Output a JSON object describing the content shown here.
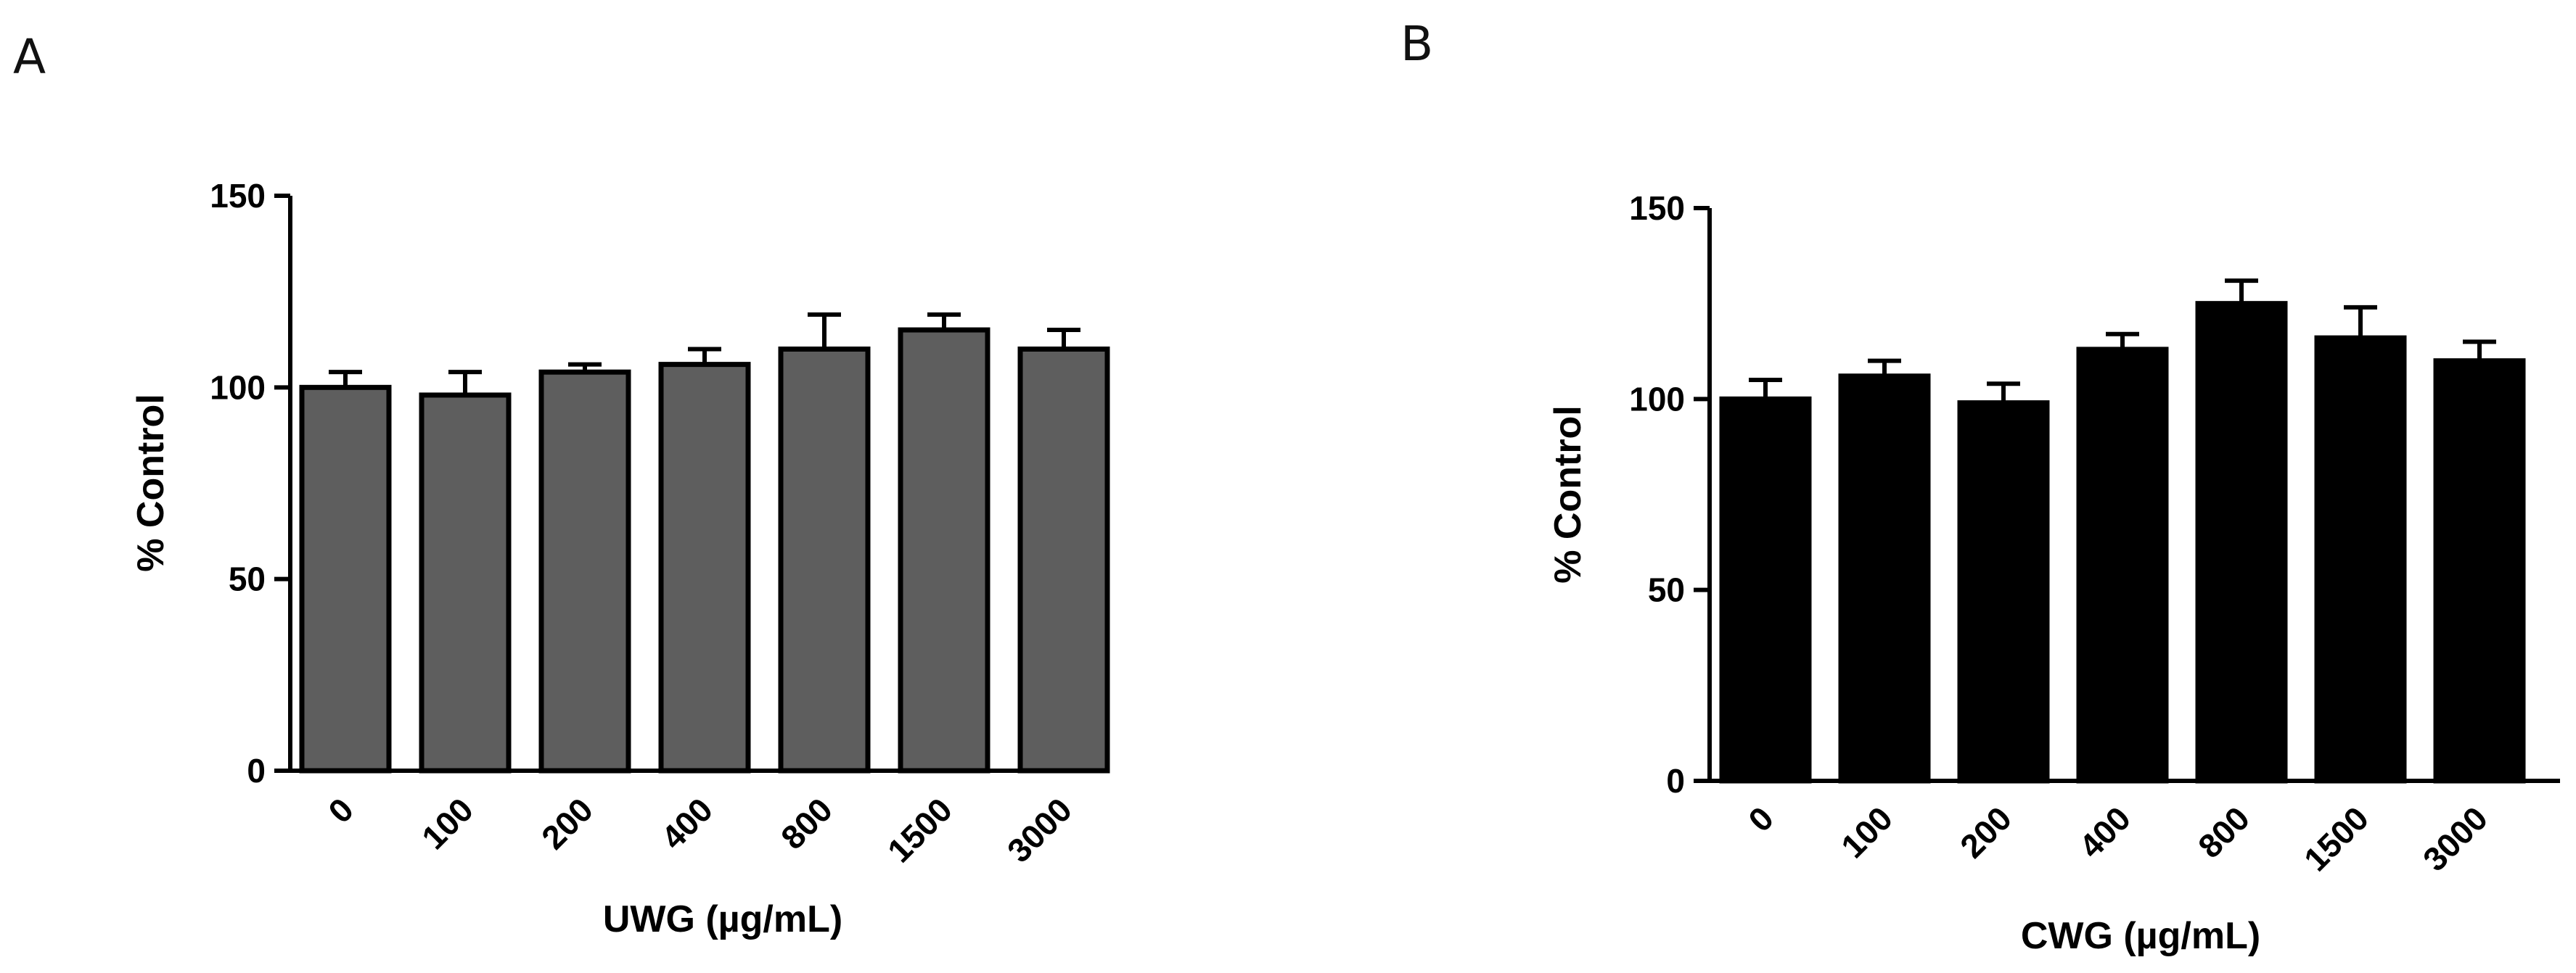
{
  "panels": [
    {
      "letter": "A"
    },
    {
      "letter": "B"
    }
  ],
  "chart_data": [
    {
      "type": "bar",
      "panel": "A",
      "categories": [
        "0",
        "100",
        "200",
        "400",
        "800",
        "1500",
        "3000"
      ],
      "values": [
        100,
        98,
        104,
        106,
        110,
        115,
        110
      ],
      "errors": [
        4,
        6,
        2,
        4,
        9,
        4,
        5
      ],
      "bar_color": "#5e5e5e",
      "title": "",
      "xlabel": "UWG (µg/mL)",
      "ylabel": "% Control",
      "ylim": [
        0,
        150
      ],
      "yticks": [
        0,
        50,
        100,
        150
      ],
      "grid": false
    },
    {
      "type": "bar",
      "panel": "B",
      "categories": [
        "0",
        "100",
        "200",
        "400",
        "800",
        "1500",
        "3000"
      ],
      "values": [
        100,
        106,
        99,
        113,
        125,
        116,
        110
      ],
      "errors": [
        5,
        4,
        5,
        4,
        6,
        8,
        5
      ],
      "bar_color": "#000000",
      "title": "",
      "xlabel": "CWG (µg/mL)",
      "ylabel": "% Control",
      "ylim": [
        0,
        150
      ],
      "yticks": [
        0,
        50,
        100,
        150
      ],
      "grid": false
    }
  ]
}
